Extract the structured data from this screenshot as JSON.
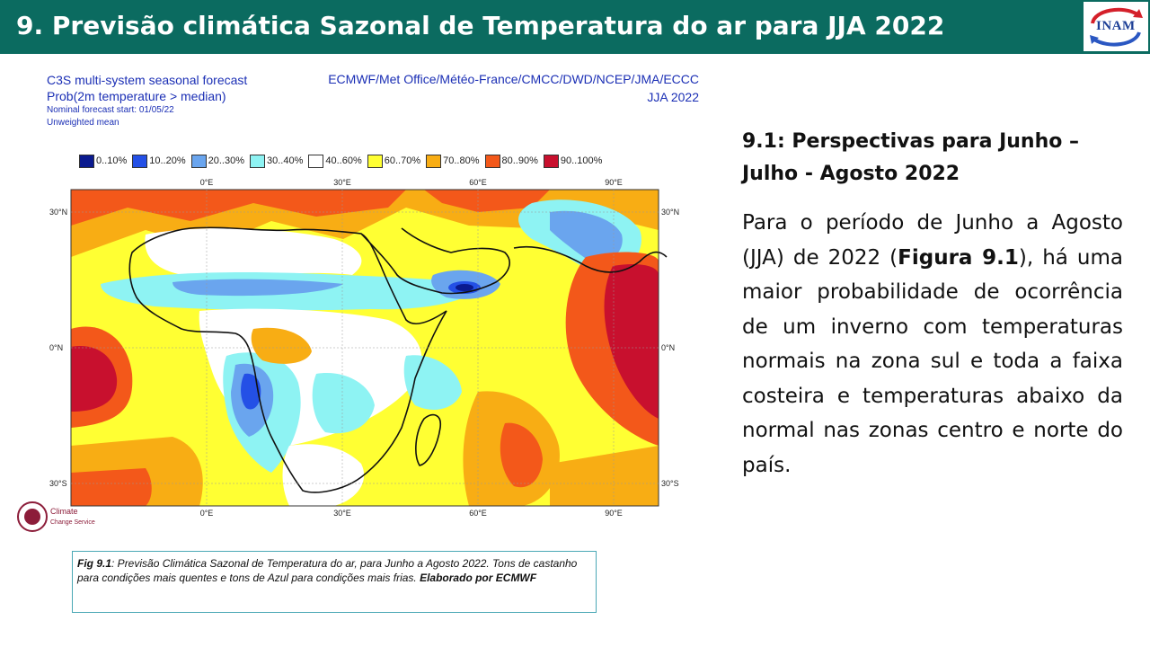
{
  "header": {
    "title": "9. Previsão climática Sazonal de Temperatura do ar para JJA 2022",
    "logo_text": "INAM",
    "background_color": "#0b6b60"
  },
  "map": {
    "head_left": {
      "line1": "C3S multi-system seasonal forecast",
      "line2": "Prob(2m temperature > median)",
      "line3": "Nominal forecast start: 01/05/22",
      "line4": "Unweighted mean"
    },
    "head_right": {
      "line1": "ECMWF/Met Office/Météo-France/CMCC/DWD/NCEP/JMA/ECCC",
      "line2": "JJA 2022"
    },
    "legend": [
      {
        "label": "0..10%",
        "color": "#0a1a8f"
      },
      {
        "label": "10..20%",
        "color": "#2450e6"
      },
      {
        "label": "20..30%",
        "color": "#6aa5ee"
      },
      {
        "label": "30..40%",
        "color": "#8ef3f3"
      },
      {
        "label": "40..60%",
        "color": "#ffffff"
      },
      {
        "label": "60..70%",
        "color": "#ffff33"
      },
      {
        "label": "70..80%",
        "color": "#f8ad14"
      },
      {
        "label": "80..90%",
        "color": "#f3581a"
      },
      {
        "label": "90..100%",
        "color": "#c8102e"
      }
    ],
    "lon_labels": [
      "0°E",
      "30°E",
      "60°E",
      "90°E"
    ],
    "lat_labels": [
      "30°N",
      "0°N",
      "30°S"
    ],
    "watermark_logo": {
      "line1": "Climate",
      "line2": "Change Service"
    }
  },
  "caption": {
    "fig_label": "Fig 9.1",
    "text": ": Previsão Climática Sazonal de Temperatura do ar, para Junho a Agosto 2022. Tons de castanho para condições mais quentes e tons de Azul para condições mais frias. ",
    "credit": "Elaborado por ECMWF"
  },
  "section": {
    "title": "9.1: Perspectivas para  Junho – Julho - Agosto 2022",
    "body_1": "Para o período de Junho a Agosto (JJA) de 2022 (",
    "body_bold": "Figura 9.1",
    "body_2": "), há uma maior probabilidade de ocorrência de um inverno com temperaturas normais na zona sul e toda a faixa costeira e temperaturas abaixo da normal nas zonas centro e norte do país."
  }
}
